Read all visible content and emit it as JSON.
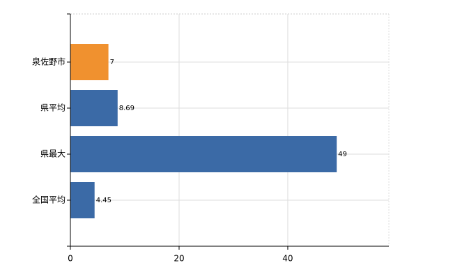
{
  "chart_data": {
    "type": "bar",
    "orientation": "horizontal",
    "categories": [
      "泉佐野市",
      "県平均",
      "県最大",
      "全国平均"
    ],
    "values": [
      7,
      8.69,
      49,
      4.45
    ],
    "colors": [
      "#f0912f",
      "#3b6aa6",
      "#3b6aa6",
      "#3b6aa6"
    ],
    "xlim": [
      0,
      58.6
    ],
    "xticks": [
      0,
      20,
      40
    ],
    "grid": true
  }
}
